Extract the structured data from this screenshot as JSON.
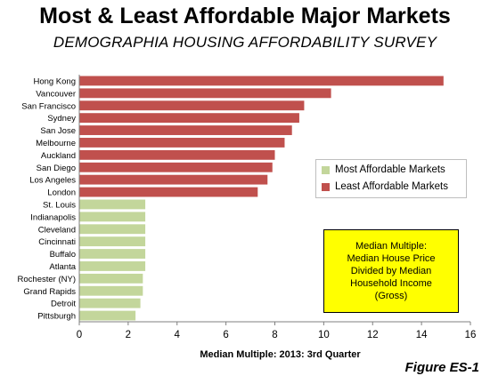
{
  "title": "Most & Least Affordable Major Markets",
  "subtitle": "DEMOGRAPHIA HOUSING AFFORDABILITY SURVEY",
  "figure_label": "Figure ES-1",
  "colors": {
    "least": "#c0504d",
    "most": "#c3d69b"
  },
  "legend": [
    {
      "label": "Most Affordable Markets",
      "key": "most"
    },
    {
      "label": "Least Affordable Markets",
      "key": "least"
    }
  ],
  "note": [
    "Median Multiple:",
    "Median House Price",
    "Divided by Median",
    "Household Income",
    "(Gross)"
  ],
  "chart_data": {
    "type": "bar",
    "orientation": "horizontal",
    "title": "Most & Least Affordable Major Markets",
    "subtitle": "DEMOGRAPHIA HOUSING AFFORDABILITY SURVEY",
    "xlabel": "Median Multiple: 2013: 3rd Quarter",
    "xlim": [
      0,
      16
    ],
    "xticks": [
      0,
      2,
      4,
      6,
      8,
      10,
      12,
      14,
      16
    ],
    "grid": false,
    "legend_position": "right",
    "categories": [
      "Hong Kong",
      "Vancouver",
      "San Francisco",
      "Sydney",
      "San Jose",
      "Melbourne",
      "Auckland",
      "San Diego",
      "Los Angeles",
      "London",
      "St. Louis",
      "Indianapolis",
      "Cleveland",
      "Cincinnati",
      "Buffalo",
      "Atlanta",
      "Rochester (NY)",
      "Grand Rapids",
      "Detroit",
      "Pittsburgh"
    ],
    "values": [
      14.9,
      10.3,
      9.2,
      9.0,
      8.7,
      8.4,
      8.0,
      7.9,
      7.7,
      7.3,
      2.7,
      2.7,
      2.7,
      2.7,
      2.7,
      2.7,
      2.6,
      2.6,
      2.5,
      2.3
    ],
    "groups": [
      "least",
      "least",
      "least",
      "least",
      "least",
      "least",
      "least",
      "least",
      "least",
      "least",
      "most",
      "most",
      "most",
      "most",
      "most",
      "most",
      "most",
      "most",
      "most",
      "most"
    ]
  }
}
